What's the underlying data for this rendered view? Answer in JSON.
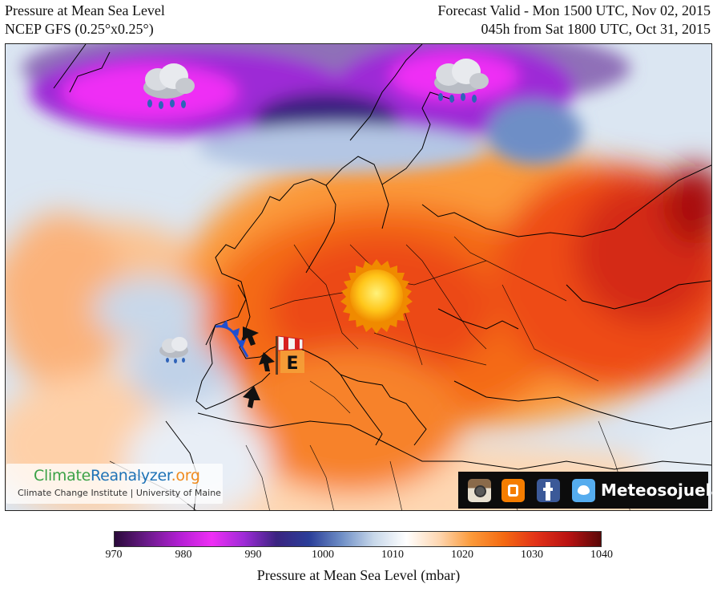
{
  "header": {
    "title": "Pressure at Mean Sea Level",
    "model": "NCEP GFS (0.25°x0.25°)",
    "valid": "Forecast Valid - Mon 1500 UTC, Nov 02, 2015",
    "lead": "045h from Sat 1800 UTC, Oct 31, 2015"
  },
  "map": {
    "symbols": [
      "rain-cloud-icon",
      "rain-cloud-icon",
      "small-rain-cloud-icon",
      "sun-icon",
      "windsock-icon",
      "wind-arrow-icon",
      "cold-front-icon"
    ],
    "windsock_label": "E"
  },
  "branding": {
    "logo_climate": "Climate",
    "logo_reanalyzer": "Reanalyzer",
    "logo_org": ".org",
    "subline": "Climate Change Institute | University of Maine",
    "social_name": "Meteosojuela",
    "social_icons": [
      "instagram-icon",
      "blogger-icon",
      "facebook-icon",
      "twitter-icon"
    ]
  },
  "colorbar": {
    "label": "Pressure at Mean Sea Level (mbar)",
    "min": 970,
    "max": 1040,
    "ticks": [
      "970",
      "980",
      "990",
      "1000",
      "1010",
      "1020",
      "1030",
      "1040"
    ],
    "stops": [
      "#2a0a3a",
      "#6a1a8a",
      "#b21fd3",
      "#ef2ef5",
      "#9d2bd6",
      "#3a2480",
      "#2a3e98",
      "#6e8ec6",
      "#c8d8ea",
      "#ffffff",
      "#fed7b2",
      "#fb9a3a",
      "#f46a12",
      "#e23218",
      "#b91212",
      "#5a0808"
    ]
  }
}
